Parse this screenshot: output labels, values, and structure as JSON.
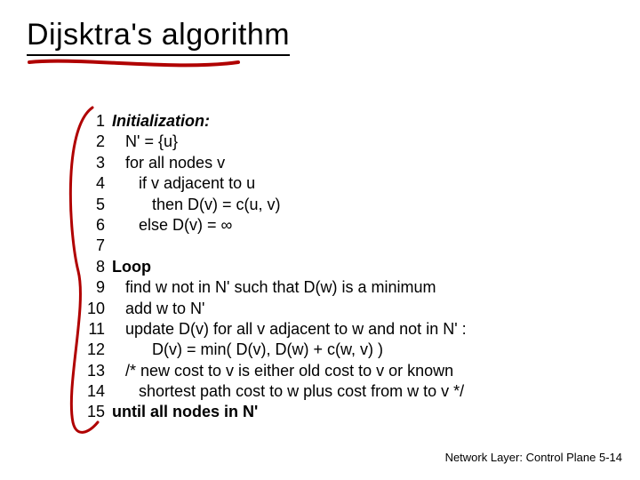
{
  "title": "Dijsktra's algorithm",
  "underline": {
    "stroke": "#b00000",
    "width": 4
  },
  "curl": {
    "stroke": "#b00000",
    "width": 3
  },
  "code": {
    "font_size": 18,
    "lines": [
      {
        "n": "1",
        "indent": 0,
        "bold": true,
        "italic": true,
        "text": "Initialization:"
      },
      {
        "n": "2",
        "indent": 1,
        "bold": false,
        "italic": false,
        "text": "N' = {u}"
      },
      {
        "n": "3",
        "indent": 1,
        "bold": false,
        "italic": false,
        "text": "for all nodes v"
      },
      {
        "n": "4",
        "indent": 2,
        "bold": false,
        "italic": false,
        "text": "if v adjacent to u"
      },
      {
        "n": "5",
        "indent": 3,
        "bold": false,
        "italic": false,
        "text": "then D(v) = c(u, v)"
      },
      {
        "n": "6",
        "indent": 2,
        "bold": false,
        "italic": false,
        "text": "else D(v) = ∞"
      },
      {
        "n": "7",
        "indent": 0,
        "bold": false,
        "italic": false,
        "text": ""
      },
      {
        "n": "8",
        "indent": 0,
        "bold": true,
        "italic": false,
        "text": "Loop"
      },
      {
        "n": "9",
        "indent": 1,
        "bold": false,
        "italic": false,
        "text": "find w not in N' such that D(w) is a minimum"
      },
      {
        "n": "10",
        "indent": 1,
        "bold": false,
        "italic": false,
        "text": "add w to N'"
      },
      {
        "n": "11",
        "indent": 1,
        "bold": false,
        "italic": false,
        "text": "update D(v) for all v adjacent to w and not in N' :"
      },
      {
        "n": "12",
        "indent": 3,
        "bold": false,
        "italic": false,
        "text": "D(v) = min( D(v), D(w) + c(w, v) )"
      },
      {
        "n": "13",
        "indent": 1,
        "bold": false,
        "italic": false,
        "text": "/* new cost to v is either old cost to v or known"
      },
      {
        "n": "14",
        "indent": 2,
        "bold": false,
        "italic": false,
        "text": "shortest path cost to w plus cost from w to v */"
      },
      {
        "n": "15",
        "indent": 0,
        "bold": true,
        "italic": false,
        "text": "until all nodes in N'"
      }
    ]
  },
  "footer": "Network Layer: Control Plane  5-14"
}
